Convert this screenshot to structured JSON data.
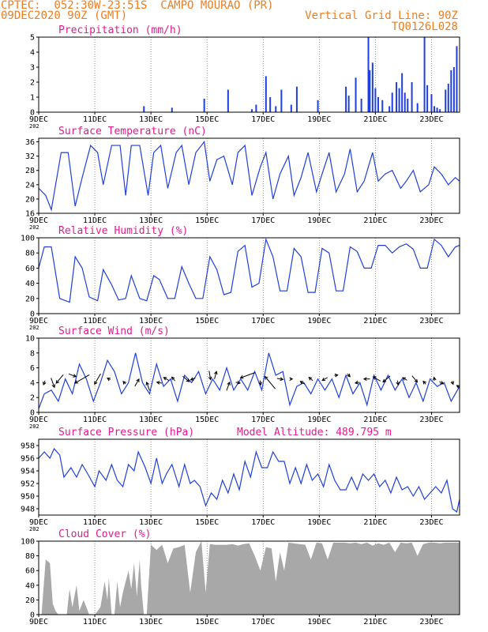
{
  "header": {
    "line1": "CPTEC:  052:30W-23:51S  CAMPO MOURAO (PR)",
    "line2": "09DEC2020 90Z (GMT)",
    "grid_line": "Vertical Grid Line: 90Z",
    "code": "TQ0126L028"
  },
  "colors": {
    "header": "#f07d1e",
    "title": "#e8198c",
    "series": "#1f3fe0",
    "cloud": "#a8a8a8",
    "axis": "#000000",
    "grid": "#666666"
  },
  "x_axis": {
    "tick_labels": [
      "9DEC",
      "11DEC",
      "13DEC",
      "15DEC",
      "17DEC",
      "19DEC",
      "21DEC",
      "23DEC"
    ],
    "tick_days": [
      9,
      11,
      13,
      15,
      17,
      19,
      21,
      23
    ],
    "range_days": [
      9,
      24
    ],
    "year_stub": "202"
  },
  "chart_data": [
    {
      "id": "precip",
      "type": "bar",
      "title": "Precipitation (mm/h)",
      "ylim": [
        0,
        5
      ],
      "yticks": [
        0,
        1,
        2,
        3,
        4,
        5
      ],
      "x": [
        12.75,
        13.75,
        14.9,
        15.75,
        16.6,
        16.75,
        17.1,
        17.25,
        17.45,
        17.65,
        18.0,
        18.2,
        18.95,
        19.95,
        20.05,
        20.3,
        20.5,
        20.75,
        20.8,
        20.9,
        21.0,
        21.1,
        21.25,
        21.5,
        21.6,
        21.75,
        21.85,
        21.95,
        22.05,
        22.15,
        22.3,
        22.5,
        22.75,
        22.85,
        23.0,
        23.1,
        23.2,
        23.3,
        23.5,
        23.6,
        23.7,
        23.8,
        23.9
      ],
      "values": [
        0.4,
        0.3,
        0.9,
        1.5,
        0.2,
        0.5,
        2.4,
        1.0,
        0.4,
        1.5,
        0.5,
        1.7,
        0.8,
        1.7,
        1.1,
        2.3,
        0.9,
        5.0,
        2.8,
        3.3,
        1.6,
        1.0,
        0.8,
        0.4,
        1.3,
        2.0,
        1.6,
        2.6,
        1.3,
        0.9,
        2.0,
        0.6,
        5.0,
        1.8,
        1.2,
        0.4,
        0.3,
        0.2,
        1.5,
        1.9,
        2.8,
        3.0,
        4.4
      ]
    },
    {
      "id": "temp",
      "type": "line",
      "title": "Surface Temperature (nC)",
      "ylim": [
        16,
        37
      ],
      "yticks": [
        16,
        20,
        24,
        28,
        32,
        36
      ],
      "x": [
        9.0,
        9.25,
        9.45,
        9.8,
        10.05,
        10.3,
        10.55,
        10.85,
        11.1,
        11.3,
        11.6,
        11.9,
        12.1,
        12.3,
        12.6,
        12.9,
        13.1,
        13.35,
        13.6,
        13.9,
        14.1,
        14.35,
        14.6,
        14.9,
        15.1,
        15.35,
        15.6,
        15.9,
        16.1,
        16.35,
        16.6,
        16.9,
        17.1,
        17.35,
        17.6,
        17.9,
        18.1,
        18.35,
        18.6,
        18.9,
        19.1,
        19.35,
        19.6,
        19.9,
        20.1,
        20.35,
        20.6,
        20.9,
        21.1,
        21.35,
        21.6,
        21.9,
        22.1,
        22.35,
        22.6,
        22.9,
        23.1,
        23.35,
        23.6,
        23.85,
        24.0
      ],
      "y": [
        23,
        21,
        17,
        33,
        33,
        18,
        26,
        35,
        33,
        24,
        35,
        35,
        21,
        35,
        35,
        21,
        33,
        35,
        23,
        33,
        35,
        24,
        33,
        36,
        25,
        31,
        32,
        24,
        33,
        35,
        21,
        29,
        33,
        20,
        27,
        32,
        21,
        26,
        33,
        22,
        27,
        33,
        22,
        27,
        34,
        22,
        25,
        33,
        25,
        27,
        28,
        23,
        25,
        28,
        22,
        24,
        29,
        27,
        24,
        26,
        25
      ]
    },
    {
      "id": "rh",
      "type": "line",
      "title": "Relative Humidity (%)",
      "ylim": [
        0,
        100
      ],
      "yticks": [
        0,
        20,
        40,
        60,
        80,
        100
      ],
      "x": [
        9.0,
        9.2,
        9.45,
        9.75,
        10.1,
        10.3,
        10.55,
        10.8,
        11.1,
        11.3,
        11.6,
        11.85,
        12.1,
        12.3,
        12.6,
        12.85,
        13.1,
        13.3,
        13.6,
        13.85,
        14.1,
        14.35,
        14.6,
        14.85,
        15.1,
        15.35,
        15.6,
        15.85,
        16.1,
        16.35,
        16.6,
        16.85,
        17.1,
        17.35,
        17.6,
        17.85,
        18.1,
        18.35,
        18.6,
        18.85,
        19.1,
        19.35,
        19.6,
        19.85,
        20.1,
        20.35,
        20.6,
        20.85,
        21.1,
        21.35,
        21.6,
        21.85,
        22.1,
        22.35,
        22.6,
        22.85,
        23.1,
        23.35,
        23.6,
        23.85,
        24.0
      ],
      "y": [
        60,
        88,
        88,
        20,
        15,
        75,
        60,
        22,
        17,
        58,
        38,
        18,
        20,
        50,
        20,
        17,
        50,
        45,
        20,
        20,
        62,
        40,
        20,
        20,
        75,
        58,
        25,
        28,
        82,
        90,
        35,
        40,
        98,
        75,
        30,
        30,
        86,
        75,
        28,
        28,
        86,
        80,
        30,
        30,
        88,
        82,
        60,
        60,
        90,
        90,
        80,
        88,
        92,
        85,
        60,
        60,
        98,
        90,
        75,
        88,
        90
      ]
    },
    {
      "id": "wind",
      "type": "line",
      "title": "Surface Wind (m/s)",
      "ylim": [
        0,
        10
      ],
      "yticks": [
        0,
        2,
        4,
        6,
        8,
        10
      ],
      "x": [
        9.0,
        9.2,
        9.45,
        9.7,
        9.95,
        10.2,
        10.45,
        10.7,
        10.95,
        11.2,
        11.45,
        11.7,
        11.95,
        12.2,
        12.45,
        12.7,
        12.95,
        13.2,
        13.45,
        13.7,
        13.95,
        14.2,
        14.45,
        14.7,
        14.95,
        15.2,
        15.45,
        15.7,
        15.95,
        16.2,
        16.45,
        16.7,
        16.95,
        17.2,
        17.45,
        17.7,
        17.95,
        18.2,
        18.45,
        18.7,
        18.95,
        19.2,
        19.45,
        19.7,
        19.95,
        20.2,
        20.45,
        20.7,
        20.95,
        21.2,
        21.45,
        21.7,
        21.95,
        22.2,
        22.45,
        22.7,
        22.95,
        23.2,
        23.45,
        23.7,
        24.0
      ],
      "y": [
        0.5,
        2.5,
        3.0,
        1.5,
        4.5,
        2.5,
        6.5,
        4.5,
        1.5,
        4.0,
        7.0,
        5.5,
        2.5,
        4.0,
        8.0,
        4.0,
        2.5,
        6.5,
        3.5,
        4.5,
        1.5,
        5.0,
        4.0,
        5.5,
        2.5,
        4.5,
        3.0,
        6.0,
        3.0,
        4.5,
        3.0,
        5.5,
        3.0,
        8.0,
        5.0,
        5.5,
        1.0,
        3.5,
        4.0,
        2.5,
        4.5,
        3.0,
        4.5,
        2.0,
        5.0,
        2.5,
        4.0,
        1.0,
        5.0,
        3.0,
        5.0,
        3.0,
        4.5,
        2.0,
        4.0,
        1.5,
        4.5,
        3.5,
        4.0,
        1.5,
        3.5
      ],
      "vectors": [
        {
          "x": 9.2,
          "y": 4.0,
          "dir": 200,
          "spd": 0.8
        },
        {
          "x": 9.5,
          "y": 4.0,
          "dir": 160,
          "spd": 1.8
        },
        {
          "x": 9.75,
          "y": 4.5,
          "dir": 220,
          "spd": 2.0
        },
        {
          "x": 10.2,
          "y": 5.0,
          "dir": 110,
          "spd": 1.4
        },
        {
          "x": 10.55,
          "y": 4.5,
          "dir": 240,
          "spd": 3.0
        },
        {
          "x": 11.1,
          "y": 4.5,
          "dir": 210,
          "spd": 2.2
        },
        {
          "x": 11.5,
          "y": 4.5,
          "dir": 300,
          "spd": 0.6
        },
        {
          "x": 12.05,
          "y": 4.0,
          "dir": 320,
          "spd": 0.6
        },
        {
          "x": 12.5,
          "y": 4.0,
          "dir": 30,
          "spd": 1.5
        },
        {
          "x": 12.9,
          "y": 3.5,
          "dir": 340,
          "spd": 1.6
        },
        {
          "x": 13.3,
          "y": 4.0,
          "dir": 280,
          "spd": 0.9
        },
        {
          "x": 13.55,
          "y": 4.5,
          "dir": 300,
          "spd": 1.1
        },
        {
          "x": 13.8,
          "y": 4.5,
          "dir": 320,
          "spd": 0.9
        },
        {
          "x": 14.25,
          "y": 4.5,
          "dir": 130,
          "spd": 1.5
        },
        {
          "x": 14.5,
          "y": 4.5,
          "dir": 250,
          "spd": 0.9
        },
        {
          "x": 15.1,
          "y": 5.0,
          "dir": 170,
          "spd": 1.6
        },
        {
          "x": 15.3,
          "y": 5.0,
          "dir": 15,
          "spd": 1.4
        },
        {
          "x": 15.75,
          "y": 3.5,
          "dir": 20,
          "spd": 1.6
        },
        {
          "x": 16.1,
          "y": 4.0,
          "dir": 100,
          "spd": 0.8
        },
        {
          "x": 16.45,
          "y": 5.0,
          "dir": 250,
          "spd": 2.8
        },
        {
          "x": 16.9,
          "y": 4.0,
          "dir": 170,
          "spd": 0.8
        },
        {
          "x": 17.25,
          "y": 4.0,
          "dir": 320,
          "spd": 2.9
        },
        {
          "x": 17.6,
          "y": 4.5,
          "dir": 100,
          "spd": 1.1
        },
        {
          "x": 18.0,
          "y": 4.5,
          "dir": 90,
          "spd": 0.4
        },
        {
          "x": 18.4,
          "y": 4.0,
          "dir": 300,
          "spd": 0.9
        },
        {
          "x": 18.7,
          "y": 4.5,
          "dir": 310,
          "spd": 0.9
        },
        {
          "x": 19.2,
          "y": 4.5,
          "dir": 240,
          "spd": 1.1
        },
        {
          "x": 19.6,
          "y": 5.0,
          "dir": 80,
          "spd": 0.6
        },
        {
          "x": 20.05,
          "y": 5.0,
          "dir": 140,
          "spd": 0.7
        },
        {
          "x": 20.35,
          "y": 4.0,
          "dir": 260,
          "spd": 0.7
        },
        {
          "x": 20.7,
          "y": 4.5,
          "dir": 270,
          "spd": 1.1
        },
        {
          "x": 21.05,
          "y": 4.5,
          "dir": 300,
          "spd": 1.5
        },
        {
          "x": 21.4,
          "y": 4.5,
          "dir": 230,
          "spd": 1.7
        },
        {
          "x": 21.8,
          "y": 4.0,
          "dir": 170,
          "spd": 0.8
        },
        {
          "x": 22.05,
          "y": 4.5,
          "dir": 300,
          "spd": 0.9
        },
        {
          "x": 22.4,
          "y": 4.5,
          "dir": 140,
          "spd": 1.5
        },
        {
          "x": 22.75,
          "y": 4.0,
          "dir": 320,
          "spd": 0.7
        },
        {
          "x": 23.1,
          "y": 4.5,
          "dir": 350,
          "spd": 0.6
        },
        {
          "x": 23.35,
          "y": 4.0,
          "dir": 120,
          "spd": 0.8
        },
        {
          "x": 23.75,
          "y": 4.0,
          "dir": 160,
          "spd": 0.6
        },
        {
          "x": 23.95,
          "y": 3.5,
          "dir": 300,
          "spd": 0.6
        }
      ]
    },
    {
      "id": "press",
      "type": "line",
      "title": "Surface Pressure (hPa)",
      "extra_label": "Model Altitude: 489.795 m",
      "ylim": [
        947,
        959
      ],
      "yticks": [
        948,
        950,
        952,
        954,
        956,
        958
      ],
      "x": [
        9.0,
        9.2,
        9.4,
        9.55,
        9.75,
        9.9,
        10.15,
        10.35,
        10.55,
        10.75,
        11.0,
        11.15,
        11.4,
        11.6,
        11.8,
        12.0,
        12.2,
        12.4,
        12.55,
        12.8,
        13.0,
        13.2,
        13.4,
        13.55,
        13.75,
        14.0,
        14.2,
        14.4,
        14.55,
        14.75,
        14.95,
        15.15,
        15.35,
        15.55,
        15.75,
        15.95,
        16.15,
        16.35,
        16.55,
        16.75,
        16.95,
        17.15,
        17.35,
        17.55,
        17.75,
        17.95,
        18.15,
        18.35,
        18.55,
        18.75,
        18.95,
        19.15,
        19.35,
        19.55,
        19.75,
        19.95,
        20.15,
        20.35,
        20.55,
        20.75,
        20.95,
        21.15,
        21.35,
        21.55,
        21.75,
        21.95,
        22.15,
        22.35,
        22.55,
        22.75,
        22.95,
        23.15,
        23.35,
        23.55,
        23.75,
        23.9,
        24.0
      ],
      "y": [
        956,
        957,
        956,
        957.5,
        956.5,
        953,
        954.5,
        953,
        955,
        953.5,
        951.5,
        954,
        952.5,
        955,
        952.5,
        951.5,
        955,
        954,
        957,
        954.5,
        952,
        956,
        952,
        953.5,
        955,
        951.5,
        955,
        952,
        952.5,
        951.5,
        948.5,
        950.5,
        949.5,
        952.5,
        950.5,
        953.5,
        951,
        955.5,
        953,
        957,
        954.5,
        954.5,
        957,
        955.5,
        955.5,
        952,
        954.5,
        952,
        955,
        952.5,
        953.5,
        951.5,
        955,
        952.5,
        951,
        951,
        953,
        951,
        953.5,
        952.5,
        953.5,
        951.5,
        952.5,
        950.5,
        953,
        951,
        951.5,
        950,
        951.5,
        949.5,
        950.5,
        951.5,
        950.5,
        952.5,
        948,
        947.5,
        949.5
      ]
    },
    {
      "id": "cloud",
      "type": "area",
      "title": "Cloud Cover (%)",
      "ylim": [
        0,
        100
      ],
      "yticks": [
        0,
        20,
        40,
        60,
        80,
        100
      ],
      "x": [
        9.0,
        9.1,
        9.25,
        9.4,
        9.5,
        9.6,
        9.7,
        10.0,
        10.1,
        10.2,
        10.35,
        10.45,
        10.6,
        10.8,
        11.0,
        11.2,
        11.35,
        11.45,
        11.5,
        11.6,
        11.7,
        11.8,
        11.9,
        12.0,
        12.2,
        12.3,
        12.4,
        12.5,
        12.6,
        12.65,
        12.75,
        12.85,
        13.0,
        13.2,
        13.4,
        13.6,
        13.8,
        14.0,
        14.2,
        14.4,
        14.6,
        14.8,
        14.95,
        15.1,
        15.3,
        15.5,
        15.7,
        15.9,
        16.1,
        16.3,
        16.5,
        16.7,
        16.9,
        17.1,
        17.3,
        17.45,
        17.6,
        17.75,
        17.9,
        18.1,
        18.3,
        18.5,
        18.7,
        18.9,
        19.1,
        19.3,
        19.5,
        19.7,
        19.9,
        20.1,
        20.3,
        20.5,
        20.7,
        20.9,
        21.1,
        21.3,
        21.5,
        21.7,
        21.9,
        22.1,
        22.3,
        22.5,
        22.7,
        22.9,
        23.1,
        23.3,
        23.5,
        23.7,
        23.9,
        24.0
      ],
      "y": [
        0,
        0,
        75,
        70,
        15,
        5,
        0,
        0,
        35,
        10,
        40,
        5,
        20,
        0,
        0,
        10,
        45,
        20,
        50,
        0,
        0,
        45,
        10,
        30,
        60,
        35,
        70,
        25,
        75,
        40,
        0,
        0,
        95,
        88,
        95,
        70,
        90,
        92,
        95,
        30,
        85,
        100,
        30,
        96,
        95,
        95,
        95,
        96,
        94,
        96,
        97,
        80,
        60,
        92,
        90,
        45,
        85,
        60,
        98,
        97,
        96,
        95,
        75,
        98,
        97,
        75,
        98,
        98,
        98,
        97,
        98,
        96,
        98,
        94,
        97,
        95,
        98,
        85,
        98,
        97,
        98,
        80,
        96,
        98,
        98,
        97,
        98,
        98,
        98,
        98
      ]
    }
  ]
}
